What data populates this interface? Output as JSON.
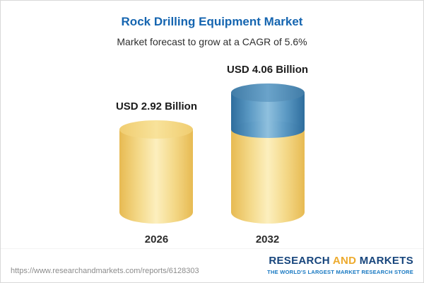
{
  "header": {
    "title": "Rock Drilling Equipment Market",
    "subtitle": "Market forecast to grow at a CAGR of 5.6%"
  },
  "chart_data": {
    "type": "bar",
    "variant": "3d-cylinder",
    "title": "Rock Drilling Equipment Market",
    "subtitle": "Market forecast to grow at a CAGR of 5.6%",
    "unit": "USD Billion",
    "cagr_percent": 5.6,
    "categories": [
      "2026",
      "2032"
    ],
    "values": [
      2.92,
      4.06
    ],
    "bar_labels": [
      "USD 2.92 Billion",
      "USD 4.06 Billion"
    ],
    "series": [
      {
        "name": "base-value",
        "color": "#F2CB62",
        "values": [
          2.92,
          2.92
        ]
      },
      {
        "name": "growth-to-forecast",
        "color": "#3F7FAD",
        "values": [
          0,
          1.14
        ]
      }
    ],
    "legend": "none",
    "grid": false,
    "axes": "none"
  },
  "footer": {
    "url": "https://www.researchandmarkets.com/reports/6128303",
    "logo": {
      "research": "RESEARCH",
      "and": "AND",
      "markets": "MARKETS",
      "tagline": "THE WORLD'S LARGEST MARKET RESEARCH STORE"
    }
  }
}
